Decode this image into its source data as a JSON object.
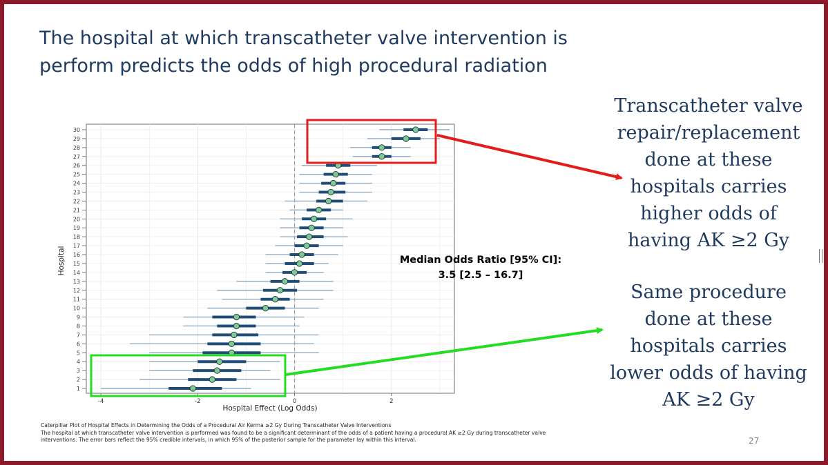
{
  "slide": {
    "title_line1": "The hospital at which transcatheter valve intervention is",
    "title_line2": "perform predicts the odds of high procedural radiation",
    "high_odds_text": [
      "Transcatheter valve",
      "repair/replacement",
      "done at these",
      "hospitals carries",
      "higher odds of",
      "having AK ≥2 Gy"
    ],
    "low_odds_text": [
      "Same procedure",
      "done at these",
      "hospitals  carries",
      "lower odds of having",
      "AK ≥2  Gy"
    ],
    "median_or_line1": "Median Odds Ratio [95% CI]:",
    "median_or_line2": "3.5 [2.5 – 16.7]",
    "caption_title": "Caterpillar Plot of Hospital Effects in Determining the Odds of a Procedural Air Kerma ≥2 Gy During Transcatheter Valve Interventions",
    "caption_line1": "The hospital at which transcatheter valve intervention is performed was found to be a significant determinant of the odds of a patient having a procedural AK ≥2 Gy during transcatheter valve",
    "caption_line2": "interventions. The error bars reflect the 95% credible intervals, in which 95% of the posterior sample for the parameter lay within this interval.",
    "page_number": "27"
  },
  "colors": {
    "title": "#1f3a5f",
    "frame": "#8b1a2b",
    "point_fill": "#7fc89a",
    "inner_bar": "#1f4e79",
    "outer_bar": "#8fa9bf",
    "high_box": "#e31b1b",
    "low_box": "#22dd22"
  },
  "chart_data": {
    "type": "scatter",
    "subtype": "caterpillar",
    "xlabel": "Hospital Effect (Log Odds)",
    "ylabel": "Hospital",
    "xlim": [
      -4.3,
      3.3
    ],
    "x_ticks": [
      -4,
      -2,
      0,
      2
    ],
    "reference_line": 0,
    "categories": [
      "1",
      "2",
      "3",
      "4",
      "5",
      "6",
      "7",
      "8",
      "9",
      "10",
      "11",
      "12",
      "13",
      "14",
      "15",
      "16",
      "17",
      "18",
      "19",
      "20",
      "21",
      "22",
      "23",
      "24",
      "25",
      "26",
      "27",
      "28",
      "29",
      "30"
    ],
    "median": [
      -2.1,
      -1.7,
      -1.6,
      -1.55,
      -1.3,
      -1.3,
      -1.25,
      -1.2,
      -1.2,
      -0.6,
      -0.4,
      -0.3,
      -0.2,
      0.0,
      0.1,
      0.15,
      0.25,
      0.3,
      0.35,
      0.4,
      0.5,
      0.7,
      0.75,
      0.8,
      0.85,
      0.9,
      1.8,
      1.8,
      2.3,
      2.5
    ],
    "inner_low": [
      -2.6,
      -2.2,
      -2.1,
      -2.0,
      -1.9,
      -1.8,
      -1.7,
      -1.6,
      -1.7,
      -1.0,
      -0.7,
      -0.65,
      -0.5,
      -0.25,
      -0.2,
      -0.1,
      0.0,
      0.05,
      0.1,
      0.15,
      0.25,
      0.45,
      0.5,
      0.55,
      0.6,
      0.65,
      1.6,
      1.6,
      2.0,
      2.25
    ],
    "inner_high": [
      -1.5,
      -1.2,
      -1.1,
      -1.0,
      -0.7,
      -0.7,
      -0.75,
      -0.8,
      -0.8,
      -0.2,
      -0.1,
      0.05,
      0.1,
      0.25,
      0.4,
      0.4,
      0.5,
      0.6,
      0.6,
      0.65,
      0.75,
      1.0,
      1.05,
      1.05,
      1.1,
      1.15,
      2.0,
      2.0,
      2.6,
      2.75
    ],
    "outer_low": [
      -4.0,
      -3.2,
      -3.0,
      -3.0,
      -3.0,
      -3.4,
      -3.0,
      -2.3,
      -2.3,
      -1.8,
      -1.5,
      -1.6,
      -1.2,
      -0.6,
      -0.6,
      -0.6,
      -0.4,
      -0.3,
      -0.3,
      -0.3,
      -0.1,
      -0.2,
      0.1,
      0.1,
      0.1,
      0.15,
      1.2,
      1.15,
      1.5,
      1.75
    ],
    "outer_high": [
      -0.9,
      -0.3,
      -0.5,
      -0.3,
      0.5,
      0.4,
      0.5,
      0.1,
      0.2,
      0.5,
      0.6,
      0.8,
      0.8,
      0.6,
      0.7,
      0.9,
      1.0,
      1.1,
      1.0,
      1.2,
      1.0,
      1.5,
      1.6,
      1.6,
      1.6,
      1.7,
      2.4,
      2.4,
      3.0,
      3.2
    ],
    "grid": true,
    "legend": "none"
  }
}
